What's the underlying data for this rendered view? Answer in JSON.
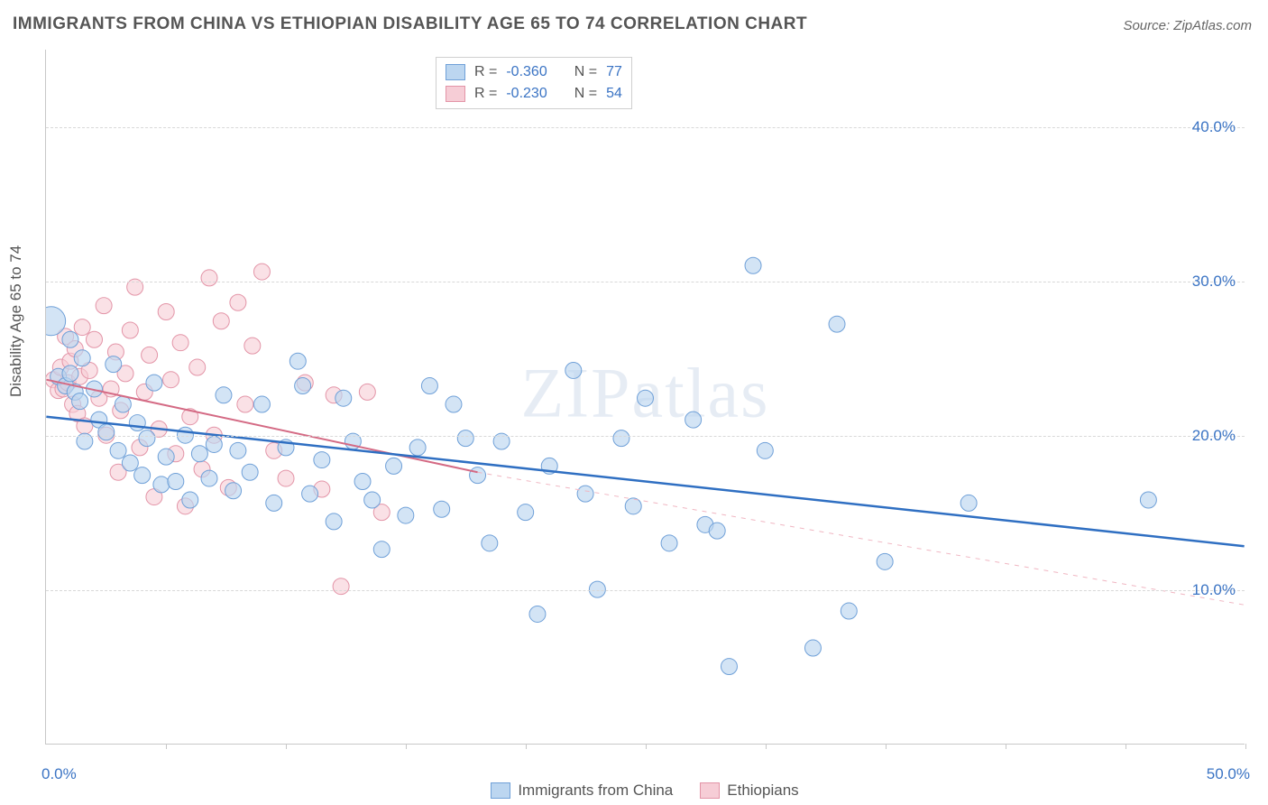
{
  "title": "IMMIGRANTS FROM CHINA VS ETHIOPIAN DISABILITY AGE 65 TO 74 CORRELATION CHART",
  "source": "Source: ZipAtlas.com",
  "watermark": "ZIPatlas",
  "y_axis_label": "Disability Age 65 to 74",
  "chart": {
    "type": "scatter",
    "xlim": [
      0,
      50
    ],
    "ylim": [
      0,
      45
    ],
    "background_color": "#ffffff",
    "grid_color": "#d8d8d8",
    "y_ticks": [
      10,
      20,
      30,
      40
    ],
    "y_tick_labels": [
      "10.0%",
      "20.0%",
      "30.0%",
      "40.0%"
    ],
    "x_tick_positions": [
      5,
      10,
      15,
      20,
      25,
      30,
      35,
      40,
      45,
      50
    ],
    "x_min_label": "0.0%",
    "x_max_label": "50.0%",
    "axis_label_color": "#3b74c4",
    "axis_label_fontsize": 17,
    "title_color": "#555555",
    "title_fontsize": 19,
    "point_radius": 9,
    "point_radius_large": 16,
    "series": [
      {
        "name": "Immigrants from China",
        "fill": "#bcd6f0",
        "stroke": "#6fa0d8",
        "fill_opacity": 0.65,
        "R": "-0.360",
        "N": "77",
        "trend": {
          "x1": 0,
          "y1": 21.2,
          "x2": 50,
          "y2": 12.8,
          "color": "#2f6fc2",
          "width": 2.5,
          "style": "solid"
        },
        "points": [
          [
            0.2,
            27.4,
            16
          ],
          [
            0.5,
            23.8
          ],
          [
            0.8,
            23.2
          ],
          [
            1.0,
            24.0
          ],
          [
            1.0,
            26.2
          ],
          [
            1.2,
            22.8
          ],
          [
            1.4,
            22.2
          ],
          [
            1.5,
            25.0
          ],
          [
            1.6,
            19.6
          ],
          [
            2.0,
            23.0
          ],
          [
            2.2,
            21.0
          ],
          [
            2.5,
            20.2
          ],
          [
            2.8,
            24.6
          ],
          [
            3.0,
            19.0
          ],
          [
            3.2,
            22.0
          ],
          [
            3.5,
            18.2
          ],
          [
            3.8,
            20.8
          ],
          [
            4.0,
            17.4
          ],
          [
            4.2,
            19.8
          ],
          [
            4.5,
            23.4
          ],
          [
            4.8,
            16.8
          ],
          [
            5.0,
            18.6
          ],
          [
            5.4,
            17.0
          ],
          [
            5.8,
            20.0
          ],
          [
            6.0,
            15.8
          ],
          [
            6.4,
            18.8
          ],
          [
            6.8,
            17.2
          ],
          [
            7.0,
            19.4
          ],
          [
            7.4,
            22.6
          ],
          [
            7.8,
            16.4
          ],
          [
            8.0,
            19.0
          ],
          [
            8.5,
            17.6
          ],
          [
            9.0,
            22.0
          ],
          [
            9.5,
            15.6
          ],
          [
            10.0,
            19.2
          ],
          [
            10.5,
            24.8
          ],
          [
            10.7,
            23.2
          ],
          [
            11.0,
            16.2
          ],
          [
            11.5,
            18.4
          ],
          [
            12.0,
            14.4
          ],
          [
            12.4,
            22.4
          ],
          [
            12.8,
            19.6
          ],
          [
            13.2,
            17.0
          ],
          [
            13.6,
            15.8
          ],
          [
            14.0,
            12.6
          ],
          [
            14.5,
            18.0
          ],
          [
            15.0,
            14.8
          ],
          [
            15.5,
            19.2
          ],
          [
            16.0,
            23.2
          ],
          [
            16.5,
            15.2
          ],
          [
            17.0,
            22.0
          ],
          [
            17.5,
            19.8
          ],
          [
            18.0,
            17.4
          ],
          [
            18.5,
            13.0
          ],
          [
            19.0,
            19.6
          ],
          [
            20.0,
            15.0
          ],
          [
            20.5,
            8.4
          ],
          [
            21.0,
            18.0
          ],
          [
            22.0,
            24.2
          ],
          [
            22.5,
            16.2
          ],
          [
            23.0,
            10.0
          ],
          [
            24.0,
            19.8
          ],
          [
            24.5,
            15.4
          ],
          [
            25.0,
            22.4
          ],
          [
            26.0,
            13.0
          ],
          [
            27.0,
            21.0
          ],
          [
            27.5,
            14.2
          ],
          [
            28.0,
            13.8
          ],
          [
            28.5,
            5.0
          ],
          [
            29.5,
            31.0
          ],
          [
            30.0,
            19.0
          ],
          [
            32.0,
            6.2
          ],
          [
            33.0,
            27.2
          ],
          [
            33.5,
            8.6
          ],
          [
            35.0,
            11.8
          ],
          [
            38.5,
            15.6
          ],
          [
            46.0,
            15.8
          ]
        ]
      },
      {
        "name": "Ethiopians",
        "fill": "#f6cdd6",
        "stroke": "#e394a7",
        "fill_opacity": 0.6,
        "R": "-0.230",
        "N": "54",
        "trend_solid": {
          "x1": 0,
          "y1": 23.6,
          "x2": 18,
          "y2": 17.6,
          "color": "#d46a84",
          "width": 2,
          "style": "solid"
        },
        "trend_dash": {
          "x1": 18,
          "y1": 17.6,
          "x2": 50,
          "y2": 9.0,
          "color": "#f0b6c2",
          "width": 1,
          "style": "dashed"
        },
        "points": [
          [
            0.3,
            23.6
          ],
          [
            0.5,
            22.9
          ],
          [
            0.6,
            24.4
          ],
          [
            0.7,
            23.0
          ],
          [
            0.8,
            26.4
          ],
          [
            0.9,
            23.4
          ],
          [
            1.0,
            24.8
          ],
          [
            1.1,
            22.0
          ],
          [
            1.2,
            25.6
          ],
          [
            1.3,
            21.4
          ],
          [
            1.4,
            23.8
          ],
          [
            1.5,
            27.0
          ],
          [
            1.6,
            20.6
          ],
          [
            1.8,
            24.2
          ],
          [
            2.0,
            26.2
          ],
          [
            2.2,
            22.4
          ],
          [
            2.4,
            28.4
          ],
          [
            2.5,
            20.0
          ],
          [
            2.7,
            23.0
          ],
          [
            2.9,
            25.4
          ],
          [
            3.0,
            17.6
          ],
          [
            3.1,
            21.6
          ],
          [
            3.3,
            24.0
          ],
          [
            3.5,
            26.8
          ],
          [
            3.7,
            29.6
          ],
          [
            3.9,
            19.2
          ],
          [
            4.1,
            22.8
          ],
          [
            4.3,
            25.2
          ],
          [
            4.5,
            16.0
          ],
          [
            4.7,
            20.4
          ],
          [
            5.0,
            28.0
          ],
          [
            5.2,
            23.6
          ],
          [
            5.4,
            18.8
          ],
          [
            5.6,
            26.0
          ],
          [
            5.8,
            15.4
          ],
          [
            6.0,
            21.2
          ],
          [
            6.3,
            24.4
          ],
          [
            6.5,
            17.8
          ],
          [
            6.8,
            30.2
          ],
          [
            7.0,
            20.0
          ],
          [
            7.3,
            27.4
          ],
          [
            7.6,
            16.6
          ],
          [
            8.0,
            28.6
          ],
          [
            8.3,
            22.0
          ],
          [
            8.6,
            25.8
          ],
          [
            9.0,
            30.6
          ],
          [
            9.5,
            19.0
          ],
          [
            10.0,
            17.2
          ],
          [
            10.8,
            23.4
          ],
          [
            11.5,
            16.5
          ],
          [
            12.0,
            22.6
          ],
          [
            13.4,
            22.8
          ],
          [
            14.0,
            15.0
          ],
          [
            12.3,
            10.2
          ]
        ]
      }
    ]
  },
  "legend_top": {
    "r_label": "R =",
    "n_label": "N ="
  },
  "legend_bottom": {
    "series1": "Immigrants from China",
    "series2": "Ethiopians"
  }
}
